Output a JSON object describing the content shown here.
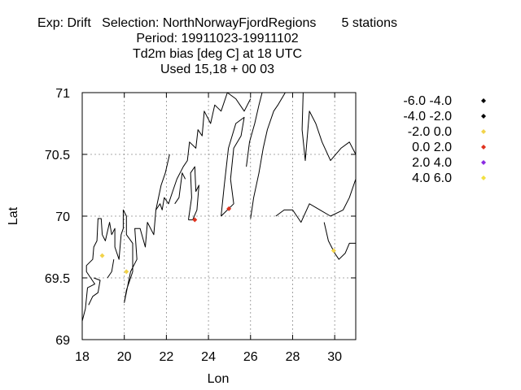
{
  "chart_data": {
    "type": "scatter",
    "title_lines": [
      "Exp: Drift   Selection: NorthNorwayFjordRegions       5 stations",
      "Period: 19911023-19911102",
      "Td2m bias [deg C] at  18 UTC",
      "Used  15,18 + 00 03"
    ],
    "xlabel": "Lon",
    "ylabel": "Lat",
    "xlim": [
      18,
      31
    ],
    "ylim": [
      69,
      71
    ],
    "xticks": [
      18,
      20,
      22,
      24,
      26,
      28,
      30
    ],
    "yticks": [
      69,
      69.5,
      70,
      70.5,
      71
    ],
    "ytick_labels": [
      "69",
      "69.5",
      "70",
      "70.5",
      "71"
    ],
    "grid": true,
    "legend": [
      {
        "label": "-6.0 -4.0",
        "color": "#000000"
      },
      {
        "label": "-4.0 -2.0",
        "color": "#000000"
      },
      {
        "label": "-2.0 0.0",
        "color": "#f2d34a"
      },
      {
        "label": "0.0 2.0",
        "color": "#e0321e"
      },
      {
        "label": "2.0 4.0",
        "color": "#8a2be2"
      },
      {
        "label": "4.0 6.0",
        "color": "#f2e040"
      }
    ],
    "points": [
      {
        "lon": 18.95,
        "lat": 69.68,
        "color": "#f2d34a"
      },
      {
        "lon": 20.1,
        "lat": 69.55,
        "color": "#f2d34a"
      },
      {
        "lon": 23.35,
        "lat": 69.97,
        "color": "#e0321e"
      },
      {
        "lon": 24.97,
        "lat": 70.06,
        "color": "#e0321e"
      },
      {
        "lon": 29.95,
        "lat": 69.72,
        "color": "#f2d34a"
      }
    ],
    "coastlines": [
      [
        [
          18.0,
          69.15
        ],
        [
          18.15,
          69.25
        ],
        [
          18.25,
          69.42
        ],
        [
          18.6,
          69.45
        ],
        [
          18.2,
          69.55
        ],
        [
          18.2,
          69.6
        ],
        [
          18.5,
          69.65
        ],
        [
          18.55,
          69.75
        ],
        [
          18.7,
          69.8
        ],
        [
          18.75,
          69.98
        ],
        [
          18.9,
          69.98
        ],
        [
          18.95,
          69.85
        ],
        [
          19.1,
          69.8
        ],
        [
          19.3,
          69.95
        ],
        [
          19.4,
          69.85
        ],
        [
          19.55,
          69.9
        ],
        [
          19.55,
          69.75
        ],
        [
          19.75,
          69.65
        ],
        [
          19.85,
          69.85
        ],
        [
          19.95,
          69.9
        ],
        [
          19.95,
          70.05
        ],
        [
          20.1,
          70.0
        ],
        [
          20.1,
          69.85
        ],
        [
          20.4,
          69.78
        ],
        [
          20.4,
          69.55
        ],
        [
          20.1,
          69.4
        ],
        [
          20.0,
          69.3
        ],
        [
          20.3,
          69.55
        ],
        [
          20.6,
          69.65
        ],
        [
          20.5,
          69.9
        ],
        [
          20.75,
          69.9
        ],
        [
          21.0,
          69.75
        ],
        [
          21.1,
          69.95
        ],
        [
          21.4,
          69.85
        ],
        [
          21.5,
          70.05
        ],
        [
          21.7,
          70.1
        ],
        [
          21.8,
          70.05
        ],
        [
          21.9,
          70.15
        ],
        [
          22.1,
          70.1
        ],
        [
          22.3,
          70.2
        ],
        [
          22.5,
          70.3
        ],
        [
          22.8,
          70.4
        ],
        [
          23.0,
          70.45
        ],
        [
          23.1,
          70.6
        ],
        [
          23.4,
          70.55
        ],
        [
          23.5,
          70.7
        ],
        [
          23.7,
          70.65
        ],
        [
          23.8,
          70.85
        ],
        [
          24.1,
          70.75
        ],
        [
          24.3,
          70.9
        ],
        [
          24.6,
          70.85
        ],
        [
          24.9,
          71.0
        ],
        [
          25.3,
          70.95
        ],
        [
          25.7,
          70.85
        ],
        [
          26.0,
          70.95
        ]
      ],
      [
        [
          23.05,
          69.97
        ],
        [
          23.2,
          70.15
        ],
        [
          23.15,
          70.35
        ],
        [
          23.35,
          70.4
        ],
        [
          23.4,
          70.2
        ],
        [
          23.55,
          70.25
        ],
        [
          23.45,
          70.05
        ],
        [
          23.25,
          69.97
        ],
        [
          23.05,
          69.97
        ]
      ],
      [
        [
          24.6,
          70.0
        ],
        [
          24.75,
          70.25
        ],
        [
          24.95,
          70.55
        ],
        [
          25.3,
          70.75
        ],
        [
          25.7,
          70.8
        ],
        [
          25.55,
          70.65
        ],
        [
          25.2,
          70.55
        ],
        [
          25.05,
          70.3
        ],
        [
          25.2,
          70.1
        ],
        [
          24.6,
          70.0
        ]
      ],
      [
        [
          25.8,
          70.4
        ],
        [
          25.95,
          70.6
        ],
        [
          26.2,
          70.75
        ],
        [
          26.4,
          70.9
        ],
        [
          26.55,
          71.0
        ]
      ],
      [
        [
          26.0,
          69.98
        ],
        [
          26.15,
          70.15
        ],
        [
          26.4,
          70.35
        ],
        [
          26.6,
          70.55
        ],
        [
          26.8,
          70.7
        ],
        [
          27.1,
          70.85
        ],
        [
          27.3,
          70.9
        ],
        [
          27.65,
          71.0
        ]
      ],
      [
        [
          28.5,
          71.0
        ],
        [
          28.45,
          70.7
        ],
        [
          28.6,
          70.45
        ],
        [
          28.8,
          70.85
        ],
        [
          29.1,
          70.75
        ],
        [
          29.4,
          70.6
        ],
        [
          29.8,
          70.45
        ],
        [
          30.3,
          70.55
        ],
        [
          30.7,
          70.6
        ],
        [
          31.0,
          70.5
        ]
      ],
      [
        [
          27.2,
          70.0
        ],
        [
          27.6,
          70.05
        ],
        [
          28.0,
          70.05
        ],
        [
          28.4,
          69.95
        ],
        [
          28.8,
          70.1
        ],
        [
          29.3,
          70.05
        ],
        [
          29.8,
          70.0
        ],
        [
          30.4,
          70.05
        ],
        [
          30.7,
          70.15
        ],
        [
          31.0,
          70.3
        ]
      ],
      [
        [
          29.5,
          69.95
        ],
        [
          29.7,
          69.8
        ],
        [
          29.85,
          69.75
        ],
        [
          30.0,
          69.7
        ],
        [
          30.2,
          69.65
        ],
        [
          30.5,
          69.7
        ],
        [
          30.7,
          69.78
        ],
        [
          31.0,
          69.78
        ]
      ],
      [
        [
          18.3,
          69.28
        ],
        [
          18.5,
          69.35
        ],
        [
          18.75,
          69.38
        ],
        [
          18.85,
          69.48
        ],
        [
          18.55,
          69.5
        ]
      ],
      [
        [
          19.2,
          69.5
        ],
        [
          19.4,
          69.55
        ],
        [
          19.5,
          69.65
        ]
      ],
      [
        [
          21.5,
          70.05
        ],
        [
          21.75,
          70.25
        ],
        [
          21.95,
          70.35
        ],
        [
          22.15,
          70.5
        ]
      ],
      [
        [
          22.4,
          70.1
        ],
        [
          22.6,
          70.15
        ],
        [
          22.75,
          70.35
        ],
        [
          22.9,
          70.3
        ]
      ]
    ]
  }
}
